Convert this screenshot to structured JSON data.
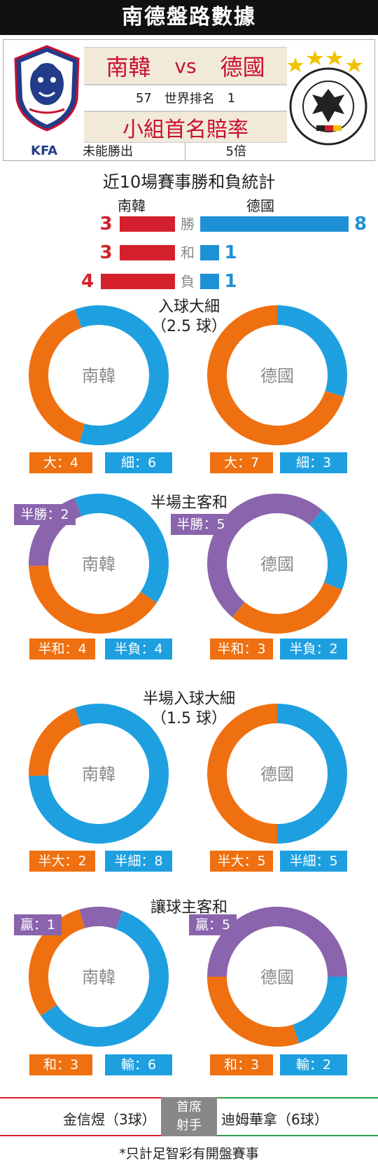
{
  "header": {
    "title": "南德盤路數據"
  },
  "matchup": {
    "team_a": "南韓",
    "vs": "vs",
    "team_b": "德國",
    "rank_a": "57",
    "rank_label": "世界排名",
    "rank_b": "1",
    "odds_title": "小組首名賠率",
    "odds_a": "未能勝出",
    "odds_b": "5倍",
    "kfa_label": "KFA"
  },
  "recent": {
    "title": "近10場賽事勝和負統計",
    "team_a": "南韓",
    "team_b": "德國",
    "rows": [
      {
        "label": "勝",
        "a": "3",
        "b": "8"
      },
      {
        "label": "和",
        "a": "3",
        "b": "1"
      },
      {
        "label": "負",
        "a": "4",
        "b": "1"
      }
    ]
  },
  "sections": {
    "goals": {
      "title": "入球大細",
      "subtitle": "（2.5 球）"
    },
    "half": {
      "title": "半場主客和"
    },
    "half_goals": {
      "title": "半場入球大細",
      "subtitle": "（1.5 球）"
    },
    "handicap": {
      "title": "讓球主客和"
    }
  },
  "donut_labels": {
    "a": "南韓",
    "b": "德國"
  },
  "chart_data": [
    {
      "type": "pie",
      "title": "近10場賽事勝和負統計",
      "categories": [
        "勝",
        "和",
        "負"
      ],
      "series": [
        {
          "name": "南韓",
          "values": [
            3,
            3,
            4
          ]
        },
        {
          "name": "德國",
          "values": [
            8,
            1,
            1
          ]
        }
      ]
    },
    {
      "type": "pie",
      "title": "入球大細",
      "subtitle": "（2.5 球）",
      "categories": [
        "大",
        "細"
      ],
      "series": [
        {
          "name": "南韓",
          "values": [
            4,
            6
          ]
        },
        {
          "name": "德國",
          "values": [
            7,
            3
          ]
        }
      ]
    },
    {
      "type": "pie",
      "title": "半場主客和",
      "categories": [
        "半勝",
        "半和",
        "半負"
      ],
      "series": [
        {
          "name": "南韓",
          "values": [
            2,
            4,
            4
          ]
        },
        {
          "name": "德國",
          "values": [
            5,
            3,
            2
          ]
        }
      ]
    },
    {
      "type": "pie",
      "title": "半場入球大細",
      "subtitle": "（1.5 球）",
      "categories": [
        "半大",
        "半細"
      ],
      "series": [
        {
          "name": "南韓",
          "values": [
            2,
            8
          ]
        },
        {
          "name": "德國",
          "values": [
            5,
            5
          ]
        }
      ]
    },
    {
      "type": "pie",
      "title": "讓球主客和",
      "categories": [
        "贏",
        "和",
        "輸"
      ],
      "series": [
        {
          "name": "南韓",
          "values": [
            1,
            3,
            6
          ]
        },
        {
          "name": "德國",
          "values": [
            5,
            3,
            2
          ]
        }
      ]
    }
  ],
  "chips": {
    "goals_a_big": "大：4",
    "goals_a_small": "細：6",
    "goals_b_big": "大：7",
    "goals_b_small": "細：3",
    "half_a_win": "半勝：2",
    "half_a_draw": "半和：4",
    "half_a_lose": "半負：4",
    "half_b_win": "半勝：5",
    "half_b_draw": "半和：3",
    "half_b_lose": "半負：2",
    "hg_a_big": "半大：2",
    "hg_a_small": "半細：8",
    "hg_b_big": "半大：5",
    "hg_b_small": "半細：5",
    "hc_a_win": "贏：1",
    "hc_a_draw": "和：3",
    "hc_a_lose": "輸：6",
    "hc_b_win": "贏：5",
    "hc_b_draw": "和：3",
    "hc_b_lose": "輸：2"
  },
  "colors": {
    "orange": "#ef7010",
    "blue": "#1ea0e0",
    "purple": "#8a64ac",
    "red": "#d4202c"
  },
  "footer": {
    "scorer_a": "金信煜（3球）",
    "scorer_label_1": "首席",
    "scorer_label_2": "射手",
    "scorer_b": "迪姆華拿（6球）",
    "note": "*只計足智彩有開盤賽事"
  }
}
